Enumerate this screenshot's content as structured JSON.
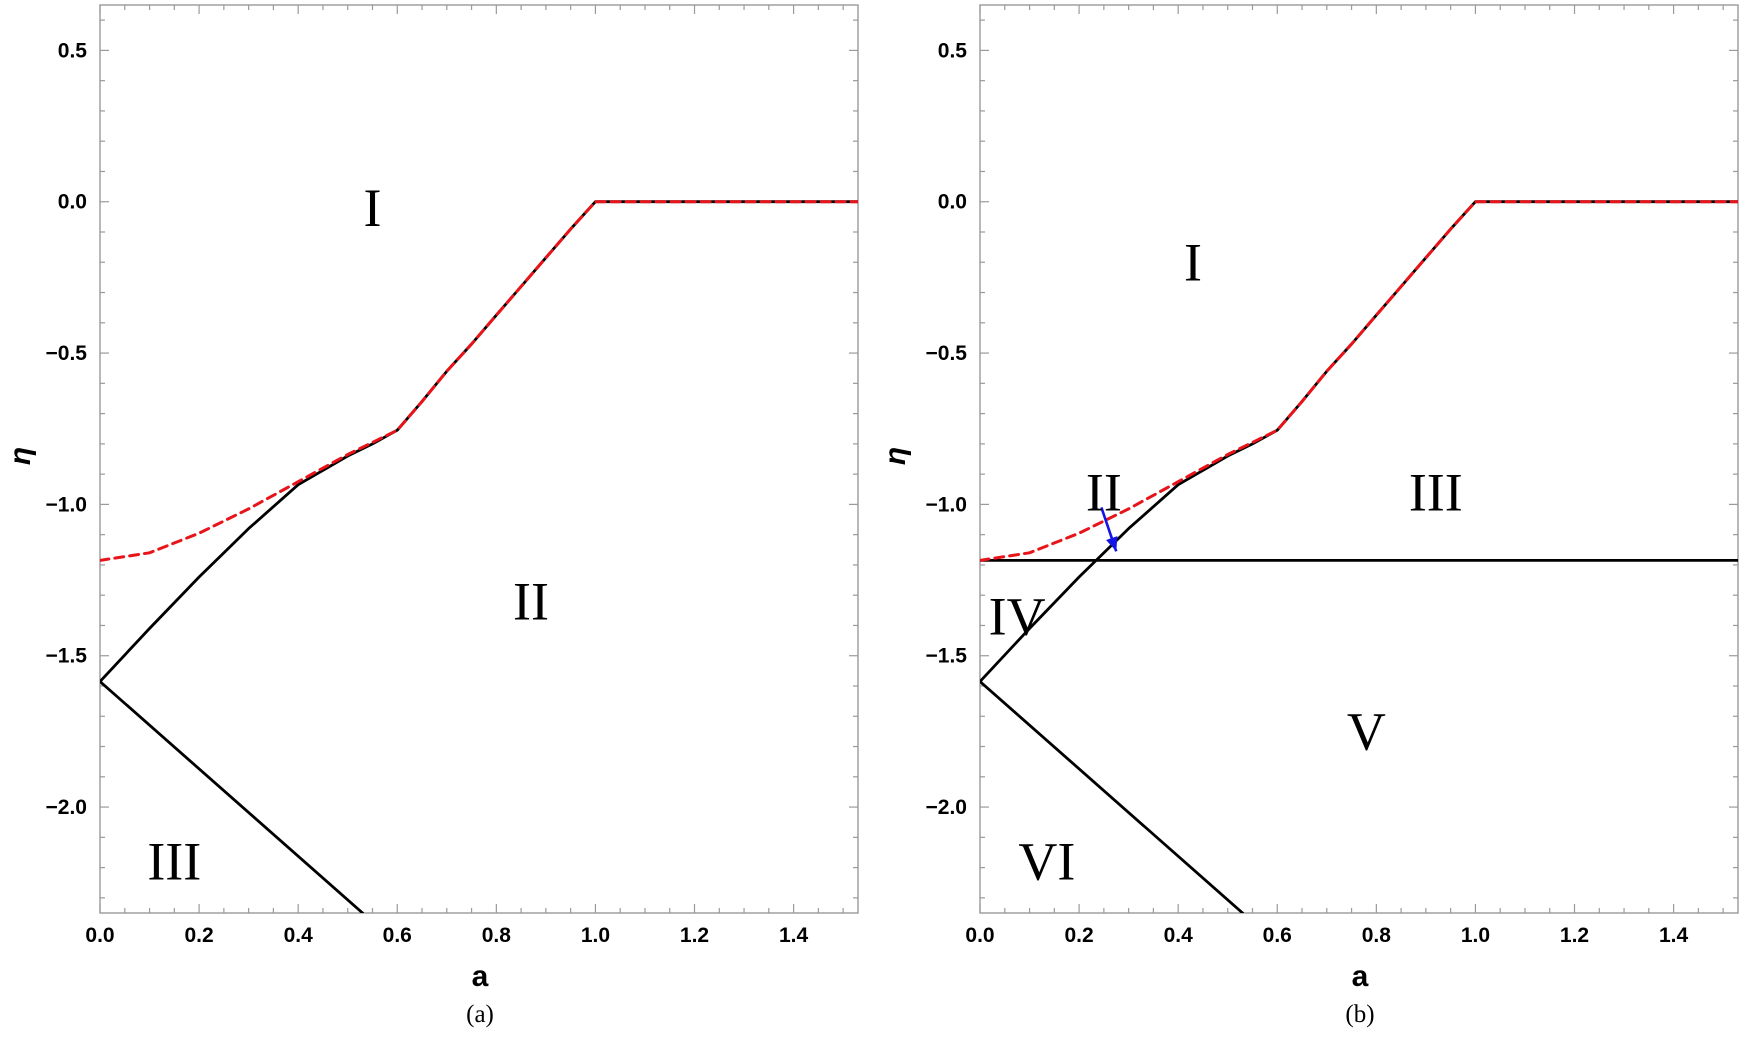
{
  "chart_data": [
    {
      "type": "line",
      "caption": "(a)",
      "xlabel": "a",
      "ylabel": "η",
      "xlim": [
        0,
        1.53
      ],
      "ylim": [
        -2.35,
        0.65
      ],
      "xticks": [
        0.0,
        0.2,
        0.4,
        0.6,
        0.8,
        1.0,
        1.2,
        1.4
      ],
      "xtick_labels": [
        "0.0",
        "0.2",
        "0.4",
        "0.6",
        "0.8",
        "1.0",
        "1.2",
        "1.4"
      ],
      "yticks": [
        0.5,
        0.0,
        -0.5,
        -1.0,
        -1.5,
        -2.0
      ],
      "ytick_labels": [
        "0.5",
        "0.0",
        "−0.5",
        "−1.0",
        "−1.5",
        "−2.0"
      ],
      "grid": false,
      "series": [
        {
          "style": "solid",
          "color": "#000000",
          "points": [
            [
              0,
              -1.585
            ],
            [
              0.1,
              -1.41
            ],
            [
              0.2,
              -1.24
            ],
            [
              0.3,
              -1.08
            ],
            [
              0.4,
              -0.935
            ],
            [
              0.5,
              -0.84
            ],
            [
              0.55,
              -0.8
            ],
            [
              0.6,
              -0.755
            ],
            [
              0.65,
              -0.66
            ],
            [
              0.7,
              -0.56
            ],
            [
              0.75,
              -0.47
            ],
            [
              0.8,
              -0.375
            ],
            [
              0.85,
              -0.28
            ],
            [
              0.9,
              -0.185
            ],
            [
              0.95,
              -0.09
            ],
            [
              1.0,
              0.0
            ],
            [
              1.53,
              0.0
            ]
          ]
        },
        {
          "style": "solid",
          "color": "#000000",
          "points": [
            [
              0,
              -1.585
            ],
            [
              0.53,
              -2.35
            ]
          ]
        },
        {
          "style": "dashed",
          "color": "#e8141a",
          "points": [
            [
              0,
              -1.185
            ],
            [
              0.1,
              -1.16
            ],
            [
              0.2,
              -1.095
            ],
            [
              0.3,
              -1.015
            ],
            [
              0.4,
              -0.925
            ],
            [
              0.5,
              -0.835
            ],
            [
              0.55,
              -0.795
            ],
            [
              0.6,
              -0.755
            ],
            [
              0.65,
              -0.66
            ],
            [
              0.7,
              -0.56
            ],
            [
              0.75,
              -0.47
            ],
            [
              0.8,
              -0.375
            ],
            [
              0.85,
              -0.28
            ],
            [
              0.9,
              -0.185
            ],
            [
              0.95,
              -0.09
            ],
            [
              1.0,
              0.0
            ],
            [
              1.53,
              0.0
            ]
          ]
        }
      ],
      "annotations": [
        {
          "text": "I",
          "x": 0.55,
          "y": -0.02
        },
        {
          "text": "II",
          "x": 0.87,
          "y": -1.32
        },
        {
          "text": "III",
          "x": 0.15,
          "y": -2.18
        }
      ]
    },
    {
      "type": "line",
      "caption": "(b)",
      "xlabel": "a",
      "ylabel": "η",
      "xlim": [
        0,
        1.53
      ],
      "ylim": [
        -2.35,
        0.65
      ],
      "xticks": [
        0.0,
        0.2,
        0.4,
        0.6,
        0.8,
        1.0,
        1.2,
        1.4
      ],
      "xtick_labels": [
        "0.0",
        "0.2",
        "0.4",
        "0.6",
        "0.8",
        "1.0",
        "1.2",
        "1.4"
      ],
      "yticks": [
        0.5,
        0.0,
        -0.5,
        -1.0,
        -1.5,
        -2.0
      ],
      "ytick_labels": [
        "0.5",
        "0.0",
        "−0.5",
        "−1.0",
        "−1.5",
        "−2.0"
      ],
      "grid": false,
      "series": [
        {
          "style": "solid",
          "color": "#000000",
          "points": [
            [
              0,
              -1.585
            ],
            [
              0.1,
              -1.41
            ],
            [
              0.2,
              -1.24
            ],
            [
              0.3,
              -1.08
            ],
            [
              0.4,
              -0.935
            ],
            [
              0.5,
              -0.84
            ],
            [
              0.55,
              -0.8
            ],
            [
              0.6,
              -0.755
            ],
            [
              0.65,
              -0.66
            ],
            [
              0.7,
              -0.56
            ],
            [
              0.75,
              -0.47
            ],
            [
              0.8,
              -0.375
            ],
            [
              0.85,
              -0.28
            ],
            [
              0.9,
              -0.185
            ],
            [
              0.95,
              -0.09
            ],
            [
              1.0,
              0.0
            ],
            [
              1.53,
              0.0
            ]
          ]
        },
        {
          "style": "solid",
          "color": "#000000",
          "points": [
            [
              0,
              -1.585
            ],
            [
              0.53,
              -2.35
            ]
          ]
        },
        {
          "style": "solid",
          "color": "#000000",
          "points": [
            [
              0,
              -1.185
            ],
            [
              1.53,
              -1.185
            ]
          ]
        },
        {
          "style": "dashed",
          "color": "#e8141a",
          "points": [
            [
              0,
              -1.185
            ],
            [
              0.1,
              -1.16
            ],
            [
              0.2,
              -1.095
            ],
            [
              0.3,
              -1.015
            ],
            [
              0.4,
              -0.925
            ],
            [
              0.5,
              -0.835
            ],
            [
              0.55,
              -0.795
            ],
            [
              0.6,
              -0.755
            ],
            [
              0.65,
              -0.66
            ],
            [
              0.7,
              -0.56
            ],
            [
              0.75,
              -0.47
            ],
            [
              0.8,
              -0.375
            ],
            [
              0.85,
              -0.28
            ],
            [
              0.9,
              -0.185
            ],
            [
              0.95,
              -0.09
            ],
            [
              1.0,
              0.0
            ],
            [
              1.53,
              0.0
            ]
          ]
        }
      ],
      "annotations": [
        {
          "text": "I",
          "x": 0.43,
          "y": -0.2
        },
        {
          "text": "II",
          "x": 0.25,
          "y": -0.96
        },
        {
          "text": "III",
          "x": 0.92,
          "y": -0.96
        },
        {
          "text": "IV",
          "x": 0.075,
          "y": -1.37
        },
        {
          "text": "V",
          "x": 0.78,
          "y": -1.75
        },
        {
          "text": "VI",
          "x": 0.135,
          "y": -2.18
        }
      ],
      "arrow": {
        "color": "#1414e6",
        "from": [
          0.245,
          -1.01
        ],
        "to": [
          0.275,
          -1.155
        ]
      }
    }
  ]
}
